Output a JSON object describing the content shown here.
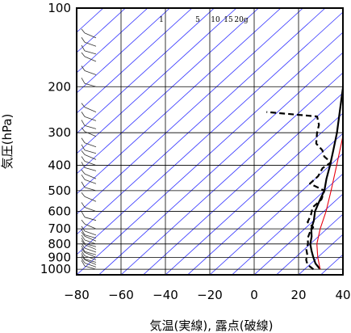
{
  "chart_data": {
    "type": "skew-t",
    "xlabel": "気温(実線), 露点(破線)",
    "ylabel": "気圧(hPa)",
    "xlim": [
      -80,
      40
    ],
    "ylim_hpa": [
      1050,
      100
    ],
    "x_ticks": [
      -80,
      -60,
      -40,
      -20,
      0,
      20,
      40
    ],
    "x_tick_labels": [
      "−80",
      "−60",
      "−40",
      "−20",
      "0",
      "20",
      "40"
    ],
    "y_ticks": [
      100,
      200,
      300,
      400,
      500,
      600,
      700,
      800,
      900,
      1000
    ],
    "y_tick_labels": [
      "100",
      "200",
      "300",
      "400",
      "500",
      "600",
      "700",
      "800",
      "900",
      "1000"
    ],
    "mixing_ratio_labels": [
      "1",
      "5",
      "10",
      "15",
      "20g"
    ],
    "grid": true,
    "colors": {
      "temperature": "#000000",
      "dewpoint": "#000000",
      "parcel": "#e8000f",
      "isotherm": "#3333ff",
      "grid": "#000000",
      "wind_barb": "#333333"
    },
    "series": [
      {
        "key": "temperature",
        "style": "solid",
        "points": [
          [
            1000,
            27
          ],
          [
            950,
            22
          ],
          [
            900,
            18
          ],
          [
            850,
            14
          ],
          [
            800,
            10
          ],
          [
            750,
            7
          ],
          [
            700,
            3
          ],
          [
            650,
            0
          ],
          [
            600,
            -4
          ],
          [
            550,
            -7
          ],
          [
            500,
            -10
          ],
          [
            450,
            -15
          ],
          [
            400,
            -20
          ],
          [
            350,
            -26
          ],
          [
            300,
            -33
          ],
          [
            250,
            -42
          ],
          [
            200,
            -53
          ],
          [
            170,
            -60
          ],
          [
            150,
            -65
          ],
          [
            130,
            -70
          ],
          [
            120,
            -72
          ],
          [
            110,
            -74
          ],
          [
            103,
            -74
          ],
          [
            100,
            -73
          ]
        ]
      },
      {
        "key": "dewpoint",
        "style": "dashed",
        "points": [
          [
            1000,
            24
          ],
          [
            960,
            19
          ],
          [
            920,
            16
          ],
          [
            880,
            14
          ],
          [
            840,
            11
          ],
          [
            800,
            9
          ],
          [
            760,
            6
          ],
          [
            720,
            4
          ],
          [
            690,
            3
          ],
          [
            660,
            -2
          ],
          [
            620,
            -4
          ],
          [
            580,
            -7
          ],
          [
            540,
            -7
          ],
          [
            500,
            -10
          ],
          [
            470,
            -20
          ],
          [
            440,
            -20
          ],
          [
            410,
            -22
          ],
          [
            390,
            -21
          ],
          [
            370,
            -27
          ],
          [
            350,
            -31
          ],
          [
            330,
            -37
          ],
          [
            300,
            -42
          ],
          [
            280,
            -45
          ],
          [
            260,
            -50
          ],
          [
            250,
            -75
          ]
        ]
      },
      {
        "key": "parcel",
        "style": "solid",
        "points": [
          [
            1000,
            27
          ],
          [
            900,
            20
          ],
          [
            800,
            13
          ],
          [
            700,
            7
          ],
          [
            600,
            1
          ],
          [
            500,
            -7
          ],
          [
            400,
            -17
          ],
          [
            300,
            -30
          ],
          [
            250,
            -40
          ],
          [
            200,
            -52
          ],
          [
            150,
            -68
          ],
          [
            120,
            -78
          ]
        ]
      }
    ],
    "wind_barb_pressures": [
      1000,
      980,
      960,
      940,
      920,
      900,
      880,
      860,
      840,
      820,
      800,
      780,
      760,
      740,
      700,
      650,
      600,
      550,
      500,
      470,
      450,
      420,
      400,
      380,
      360,
      340,
      310,
      290,
      270,
      250,
      200,
      180,
      160,
      150,
      140,
      130
    ]
  }
}
